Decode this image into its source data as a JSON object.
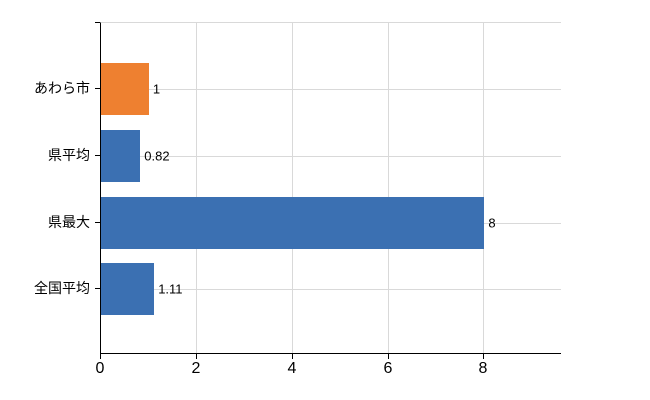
{
  "chart_data": {
    "type": "bar",
    "orientation": "horizontal",
    "title": "",
    "xlabel": "",
    "ylabel": "",
    "categories": [
      "あわら市",
      "県平均",
      "県最大",
      "全国平均"
    ],
    "values": [
      1,
      0.82,
      8,
      1.11
    ],
    "value_labels": [
      "1",
      "0.82",
      "8",
      "1.11"
    ],
    "bar_colors": [
      "#ee8030",
      "#3b70b2",
      "#3b70b2",
      "#3b70b2"
    ],
    "x_ticks": [
      0,
      2,
      4,
      6,
      8
    ],
    "xlim": [
      0,
      9.6
    ],
    "grid": true,
    "legend": "none",
    "background": "#ffffff",
    "axis_color": "#000000",
    "gridline_color": "#d9d9d9"
  }
}
